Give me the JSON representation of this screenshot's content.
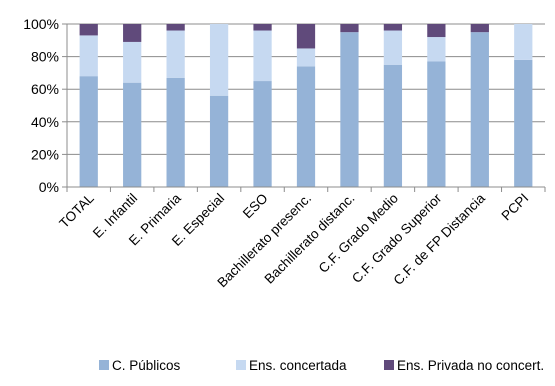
{
  "chart_data": {
    "type": "bar",
    "stacked": true,
    "percent_stacked": true,
    "categories": [
      "TOTAL",
      "E. Infantil",
      "E. Primaria",
      "E. Especial",
      "ESO",
      "Bachillerato presenc.",
      "Bachillerato distanc.",
      "C.F. Grado Medio",
      "C.F. Grado Superior",
      "C.F. de FP Distancia",
      "PCPI"
    ],
    "series": [
      {
        "name": "C. Públicos",
        "color": "#95b3d7",
        "values": [
          68,
          64,
          67,
          56,
          65,
          74,
          95,
          75,
          77,
          95,
          78
        ]
      },
      {
        "name": "Ens. concertada",
        "color": "#c6d9f1",
        "values": [
          25,
          25,
          29,
          44,
          31,
          11,
          0,
          21,
          15,
          0,
          22
        ]
      },
      {
        "name": "Ens. Privada no concert.",
        "color": "#604a7b",
        "values": [
          7,
          11,
          4,
          0,
          4,
          15,
          5,
          4,
          8,
          5,
          0
        ]
      }
    ],
    "y_ticks": [
      "0%",
      "20%",
      "40%",
      "60%",
      "80%",
      "100%"
    ],
    "ylim": [
      0,
      100
    ],
    "grid": true,
    "legend_position": "bottom"
  }
}
